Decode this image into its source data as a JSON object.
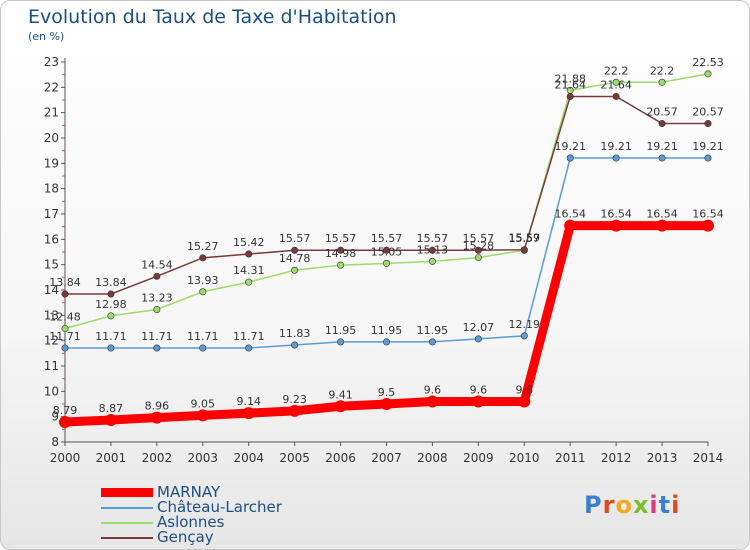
{
  "header": {
    "title": "Evolution du Taux de Taxe d'Habitation",
    "subtitle": "(en %)"
  },
  "logo": {
    "text": "Proxiti",
    "colors": [
      "#3a7fd5",
      "#e04a1e",
      "#f4a81d",
      "#7bbf2a",
      "#d83a8a"
    ]
  },
  "chart_data": {
    "type": "line",
    "title": "Evolution du Taux de Taxe d'Habitation",
    "ylabel": "(en %)",
    "xlabel": "",
    "x": [
      "2000",
      "2001",
      "2002",
      "2003",
      "2004",
      "2005",
      "2006",
      "2007",
      "2008",
      "2009",
      "2010",
      "2011",
      "2012",
      "2013",
      "2014"
    ],
    "y_ticks": [
      "8",
      "9",
      "10",
      "11",
      "12",
      "13",
      "14",
      "15",
      "16",
      "17",
      "18",
      "19",
      "20",
      "21",
      "22",
      "23"
    ],
    "ylim": [
      8,
      23
    ],
    "grid": false,
    "legend_position": "bottom-left",
    "series": [
      {
        "name": "MARNAY",
        "color": "#ff0000",
        "emphasis": true,
        "values": [
          8.79,
          8.87,
          8.96,
          9.05,
          9.14,
          9.23,
          9.41,
          9.5,
          9.6,
          9.6,
          9.6,
          16.54,
          16.54,
          16.54,
          16.54
        ],
        "labels": [
          "8.79",
          "8.87",
          "8.96",
          "9.05",
          "9.14",
          "9.23",
          "9.41",
          "9.5",
          "9.6",
          "9.6",
          "9.6",
          "16.54",
          "16.54",
          "16.54",
          "16.54"
        ]
      },
      {
        "name": "Château-Larcher",
        "color": "#5b9bd5",
        "emphasis": false,
        "values": [
          11.71,
          11.71,
          11.71,
          11.71,
          11.71,
          11.83,
          11.95,
          11.95,
          11.95,
          12.07,
          12.19,
          19.21,
          19.21,
          19.21,
          19.21
        ],
        "labels": [
          "11.71",
          "11.71",
          "11.71",
          "11.71",
          "11.71",
          "11.83",
          "11.95",
          "11.95",
          "11.95",
          "12.07",
          "12.19",
          "19.21",
          "19.21",
          "19.21",
          "19.21"
        ]
      },
      {
        "name": "Aslonnes",
        "color": "#9bdc6a",
        "emphasis": false,
        "values": [
          12.48,
          12.98,
          13.23,
          13.93,
          14.31,
          14.78,
          14.98,
          15.05,
          15.13,
          15.28,
          15.57,
          21.88,
          22.2,
          22.2,
          22.53
        ],
        "labels": [
          "12.48",
          "12.98",
          "13.23",
          "13.93",
          "14.31",
          "14.78",
          "14.98",
          "15.05",
          "15.13",
          "15.28",
          "15.57",
          "21.88",
          "22.2",
          "22.2",
          "22.53"
        ]
      },
      {
        "name": "Gençay",
        "color": "#7a3a3a",
        "emphasis": false,
        "values": [
          13.84,
          13.84,
          14.54,
          15.27,
          15.42,
          15.57,
          15.57,
          15.57,
          15.57,
          15.57,
          15.59,
          21.64,
          21.64,
          20.57,
          20.57
        ],
        "labels": [
          "13.84",
          "13.84",
          "14.54",
          "15.27",
          "15.42",
          "15.57",
          "15.57",
          "15.57",
          "15.57",
          "15.57",
          "15.59",
          "21.64",
          "21.64",
          "20.57",
          "20.57"
        ]
      }
    ]
  }
}
